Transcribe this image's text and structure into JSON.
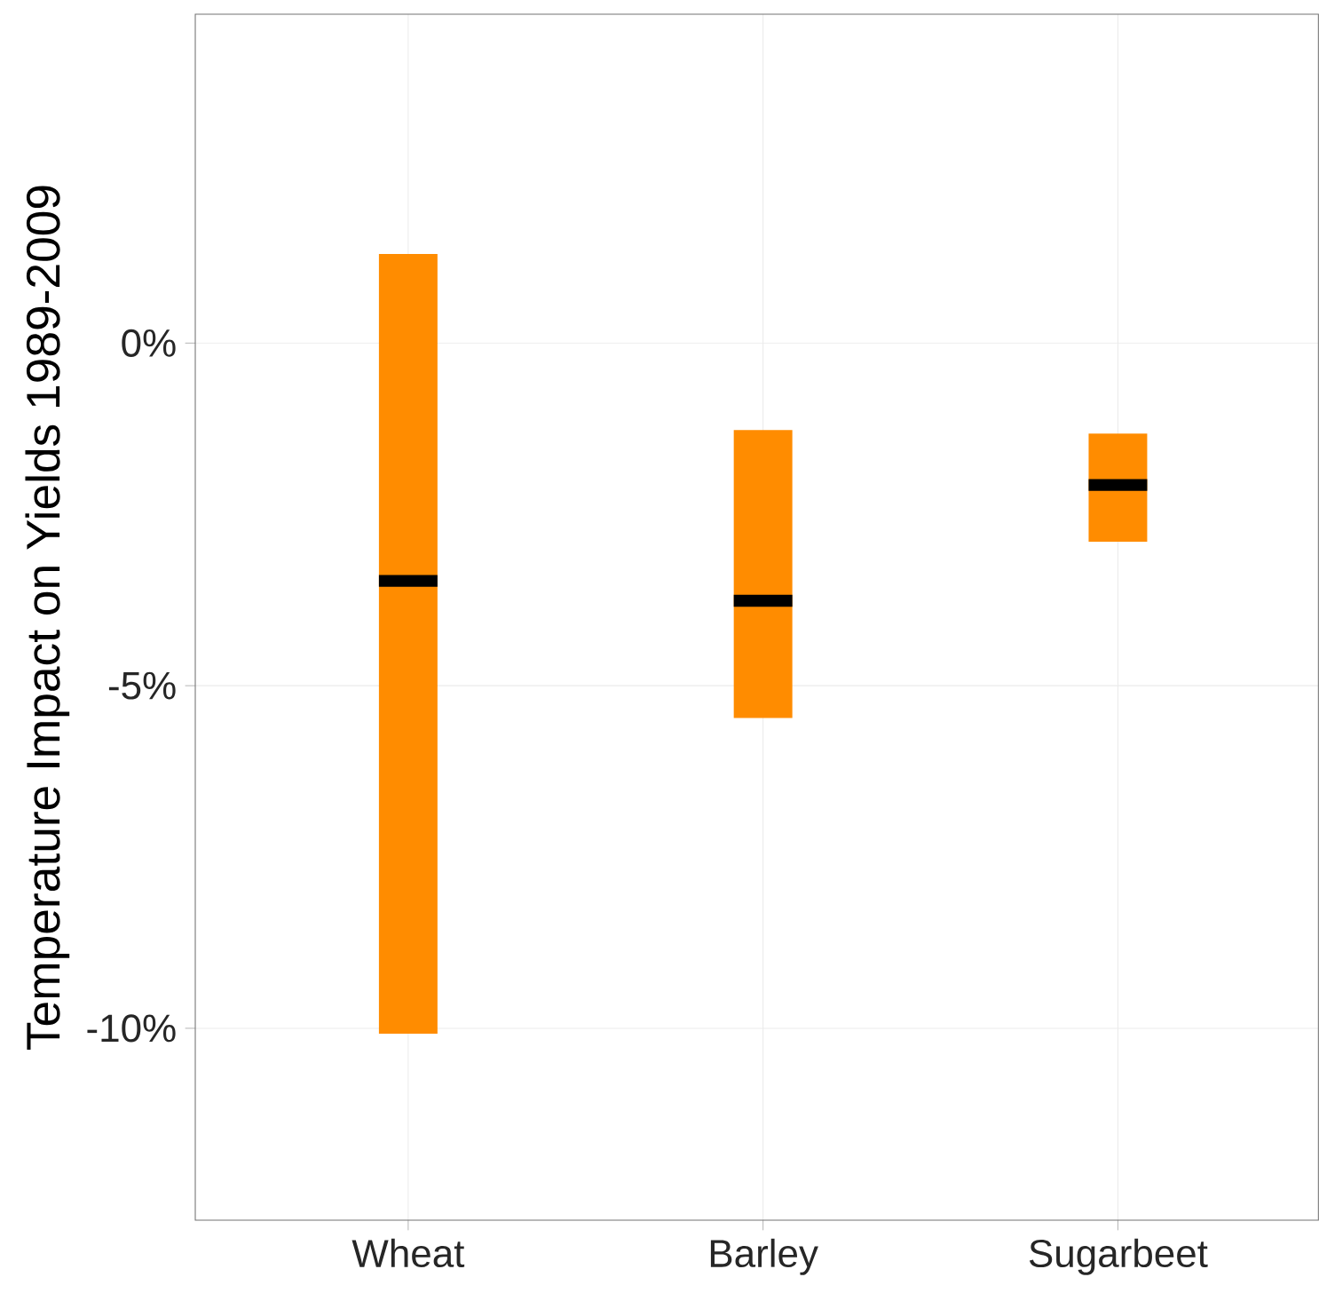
{
  "chart_data": {
    "type": "box",
    "ylabel": "Temperature Impact on Yields 1989-2009",
    "categories": [
      "Wheat",
      "Barley",
      "Sugarbeet"
    ],
    "boxes": [
      {
        "low": -10.08,
        "q1": -10.08,
        "median": -3.47,
        "q3": 1.3,
        "high": 1.3
      },
      {
        "low": -5.47,
        "q1": -5.47,
        "median": -3.76,
        "q3": -1.27,
        "high": -1.27
      },
      {
        "low": -2.9,
        "q1": -2.9,
        "median": -2.07,
        "q3": -1.32,
        "high": -1.32
      }
    ],
    "color": "#ff8c00",
    "ylim": [
      -12.8,
      4.8
    ],
    "yticks": [
      {
        "value": -10,
        "label": "-10%"
      },
      {
        "value": -5,
        "label": "-5%"
      },
      {
        "value": 0,
        "label": "0%"
      }
    ],
    "grid": true
  }
}
